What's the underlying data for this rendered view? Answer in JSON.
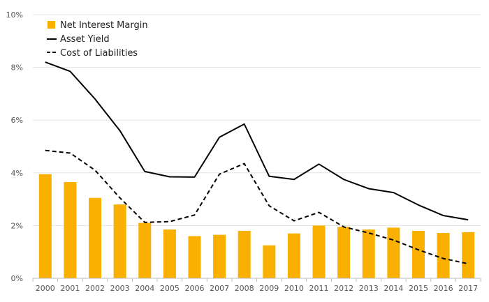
{
  "chart_data": {
    "type": "bar",
    "categories": [
      "2000",
      "2001",
      "2002",
      "2003",
      "2004",
      "2005",
      "2006",
      "2007",
      "2008",
      "2009",
      "2010",
      "2011",
      "2012",
      "2013",
      "2014",
      "2015",
      "2016",
      "2017"
    ],
    "ylim": [
      0,
      10
    ],
    "yticks": [
      0,
      2,
      4,
      6,
      8,
      10
    ],
    "ytick_labels": [
      "0%",
      "2%",
      "4%",
      "6%",
      "8%",
      "10%"
    ],
    "grid": true,
    "legend_position": "top-left",
    "series": [
      {
        "name": "Net Interest Margin",
        "kind": "bar",
        "color": "#F9B000",
        "values": [
          3.95,
          3.65,
          3.05,
          2.8,
          2.1,
          1.85,
          1.6,
          1.65,
          1.8,
          1.25,
          1.7,
          2.0,
          1.95,
          1.85,
          1.92,
          1.8,
          1.72,
          1.75
        ]
      },
      {
        "name": "Asset Yield",
        "kind": "line",
        "style": "solid",
        "color": "#000000",
        "values": [
          8.2,
          7.85,
          6.8,
          5.6,
          4.05,
          3.85,
          3.84,
          5.35,
          5.85,
          3.87,
          3.75,
          4.33,
          3.75,
          3.4,
          3.25,
          2.78,
          2.38,
          2.22
        ]
      },
      {
        "name": "Cost of Liabilities",
        "kind": "line",
        "style": "dashed",
        "color": "#000000",
        "values": [
          4.85,
          4.75,
          4.1,
          3.05,
          2.12,
          2.15,
          2.4,
          3.95,
          4.35,
          2.75,
          2.18,
          2.5,
          1.95,
          1.72,
          1.45,
          1.08,
          0.75,
          0.55
        ]
      }
    ]
  }
}
